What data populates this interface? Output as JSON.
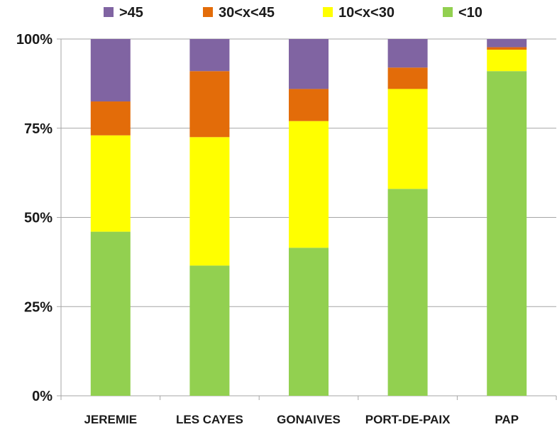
{
  "chart_data": {
    "type": "bar",
    "stacked": true,
    "percent": true,
    "categories": [
      "JEREMIE",
      "LES CAYES",
      "GONAIVES",
      "PORT-DE-PAIX",
      "PAP"
    ],
    "series": [
      {
        "name": "<10",
        "color": "#92d050",
        "values": [
          46,
          36.5,
          41.5,
          58,
          91
        ]
      },
      {
        "name": "10<x<30",
        "color": "#ffff00",
        "values": [
          27,
          36,
          35.5,
          28,
          6
        ]
      },
      {
        "name": "30<x<45",
        "color": "#e36c09",
        "values": [
          9.5,
          18.5,
          9,
          6,
          0.7
        ]
      },
      {
        "name": ">45",
        "color": "#8064a2",
        "values": [
          17.5,
          9,
          14,
          8,
          2.3
        ]
      }
    ],
    "legend_order": [
      ">45",
      "30<x<45",
      "10<x<30",
      "<10"
    ],
    "yticks": [
      "0%",
      "25%",
      "50%",
      "75%",
      "100%"
    ],
    "ylim": [
      0,
      100
    ],
    "legend_position": "top",
    "grid": true,
    "gridline_color": "#a6a6a6"
  }
}
